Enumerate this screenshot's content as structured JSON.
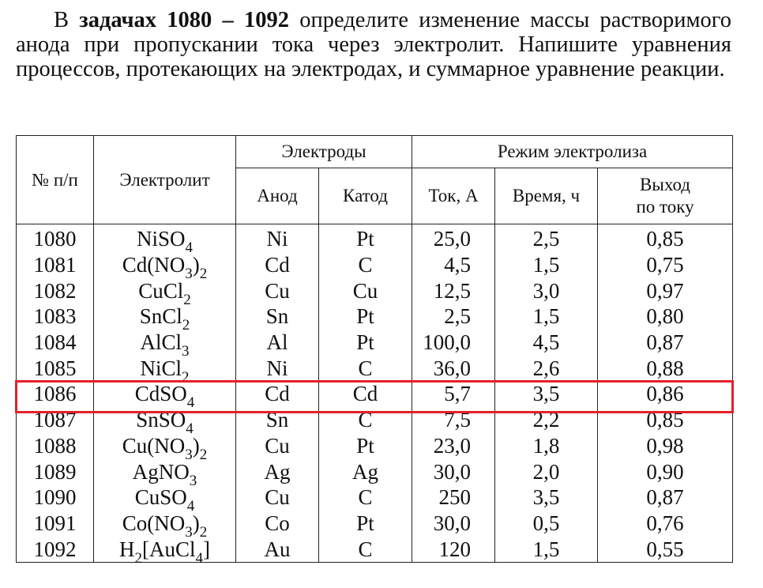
{
  "intro": {
    "prefix": "В ",
    "bold": "задачах 1080 – 1092",
    "text": " определите изменение массы растворимого анода при пропускании тока через электролит. Напишите уравнения процессов, протекающих на электродах, и суммарное уравнение реакции."
  },
  "table": {
    "headers": {
      "number": "№ п/п",
      "electrolyte": "Электролит",
      "electrodes": "Электроды",
      "mode": "Режим электролиза",
      "anode": "Анод",
      "cathode": "Катод",
      "current": "Ток, А",
      "time": "Время, ч",
      "yield_line1": "Выход",
      "yield_line2": "по току"
    },
    "rows": [
      {
        "n": "1080",
        "e": [
          {
            "t": "NiSO"
          },
          {
            "s": "4"
          }
        ],
        "anode": "Ni",
        "cathode": "Pt",
        "current": "25,0",
        "time": "2,5",
        "yield": "0,85"
      },
      {
        "n": "1081",
        "e": [
          {
            "t": "Cd(NO"
          },
          {
            "s": "3"
          },
          {
            "t": ")"
          },
          {
            "s": "2"
          }
        ],
        "anode": "Cd",
        "cathode": "C",
        "current": "4,5",
        "time": "1,5",
        "yield": "0,75"
      },
      {
        "n": "1082",
        "e": [
          {
            "t": "CuCl"
          },
          {
            "s": "2"
          }
        ],
        "anode": "Cu",
        "cathode": "Cu",
        "current": "12,5",
        "time": "3,0",
        "yield": "0,97"
      },
      {
        "n": "1083",
        "e": [
          {
            "t": "SnCl"
          },
          {
            "s": "2"
          }
        ],
        "anode": "Sn",
        "cathode": "Pt",
        "current": "2,5",
        "time": "1,5",
        "yield": "0,80"
      },
      {
        "n": "1084",
        "e": [
          {
            "t": "AlCl"
          },
          {
            "s": "3"
          }
        ],
        "anode": "Al",
        "cathode": "Pt",
        "current": "100,0",
        "time": "4,5",
        "yield": "0,87"
      },
      {
        "n": "1085",
        "e": [
          {
            "t": "NiCl"
          },
          {
            "s": "2"
          }
        ],
        "anode": "Ni",
        "cathode": "C",
        "current": "36,0",
        "time": "2,6",
        "yield": "0,88"
      },
      {
        "n": "1086",
        "e": [
          {
            "t": "CdSO"
          },
          {
            "s": "4"
          }
        ],
        "anode": "Cd",
        "cathode": "Cd",
        "current": "5,7",
        "time": "3,5",
        "yield": "0,86"
      },
      {
        "n": "1087",
        "e": [
          {
            "t": "SnSO"
          },
          {
            "s": "4"
          }
        ],
        "anode": "Sn",
        "cathode": "C",
        "current": "7,5",
        "time": "2,2",
        "yield": "0,85"
      },
      {
        "n": "1088",
        "e": [
          {
            "t": "Cu(NO"
          },
          {
            "s": "3"
          },
          {
            "t": ")"
          },
          {
            "s": "2"
          }
        ],
        "anode": "Cu",
        "cathode": "Pt",
        "current": "23,0",
        "time": "1,8",
        "yield": "0,98"
      },
      {
        "n": "1089",
        "e": [
          {
            "t": "AgNO"
          },
          {
            "s": "3"
          }
        ],
        "anode": "Ag",
        "cathode": "Ag",
        "current": "30,0",
        "time": "2,0",
        "yield": "0,90"
      },
      {
        "n": "1090",
        "e": [
          {
            "t": "CuSO"
          },
          {
            "s": "4"
          }
        ],
        "anode": "Cu",
        "cathode": "C",
        "current": "250",
        "time": "3,5",
        "yield": "0,87"
      },
      {
        "n": "1091",
        "e": [
          {
            "t": "Co(NO"
          },
          {
            "s": "3"
          },
          {
            "t": ")"
          },
          {
            "s": "2"
          }
        ],
        "anode": "Co",
        "cathode": "Pt",
        "current": "30,0",
        "time": "0,5",
        "yield": "0,76"
      },
      {
        "n": "1092",
        "e": [
          {
            "t": "H"
          },
          {
            "s": "2"
          },
          {
            "t": "[AuCl"
          },
          {
            "s": "4"
          },
          {
            "t": "]"
          }
        ],
        "anode": "Au",
        "cathode": "C",
        "current": "120",
        "time": "1,5",
        "yield": "0,55"
      }
    ]
  },
  "highlight": {
    "row_number": "1086",
    "color": "#e5202a"
  }
}
